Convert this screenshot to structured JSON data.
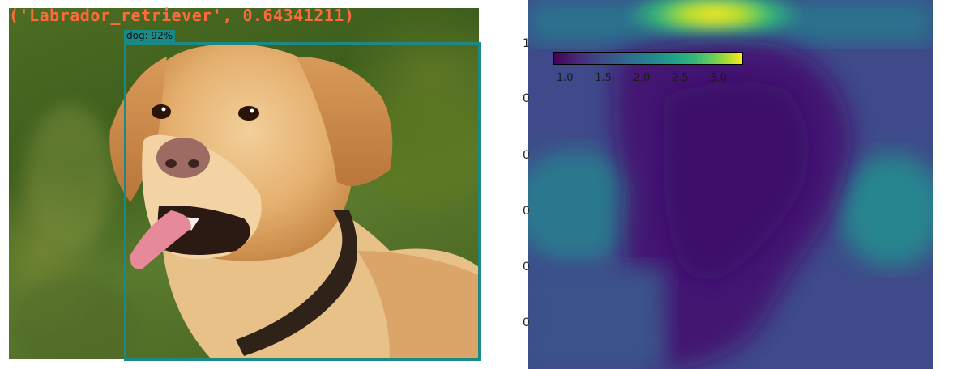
{
  "photo": {
    "classification_label": "('Labrador_retriever', 0.64341211)",
    "detection_label": "dog: 92%",
    "colors": {
      "box": "#1b8a86",
      "label_text": "#ff6a3d"
    }
  },
  "heatmap": {
    "colormap": "viridis",
    "colorbar": {
      "tick_labels": [
        "1.0",
        "1.5",
        "2.0",
        "2.5",
        "3.0"
      ],
      "min": 0.85,
      "max": 3.3
    },
    "axis_tick_fragments": [
      "1",
      "0",
      "0",
      "0",
      "0",
      "0"
    ]
  }
}
